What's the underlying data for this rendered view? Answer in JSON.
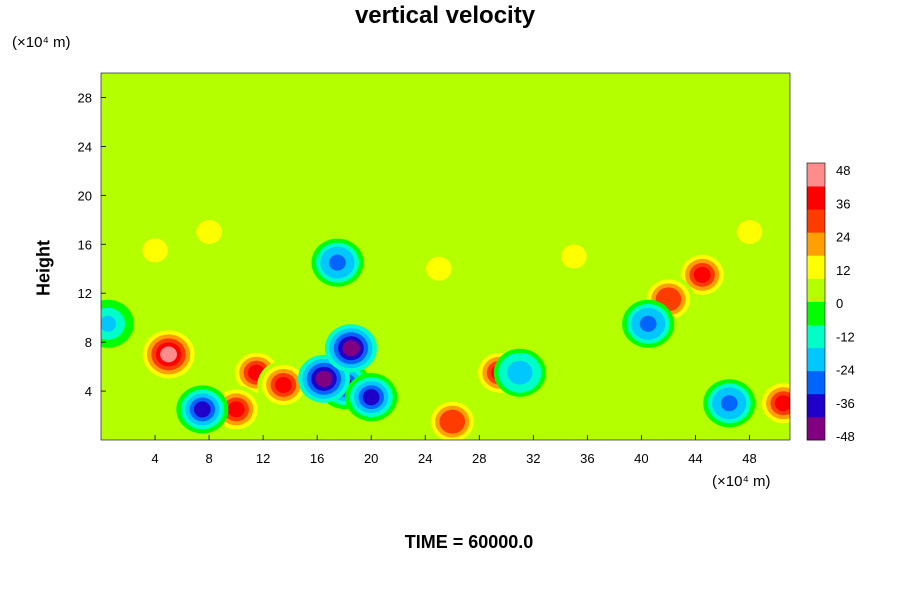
{
  "chart_data": {
    "type": "heatmap",
    "title": "vertical velocity",
    "ylabel": "Height",
    "x_unit_label": "(×10⁴ m)",
    "y_unit_label": "(×10⁴ m)",
    "time_label": "TIME = 60000.0",
    "xlim": [
      0,
      51
    ],
    "ylim": [
      0,
      30
    ],
    "x_ticks": [
      4,
      8,
      12,
      16,
      20,
      24,
      28,
      32,
      36,
      40,
      44,
      48
    ],
    "y_ticks": [
      4,
      8,
      12,
      16,
      20,
      24,
      28
    ],
    "colorbar": {
      "min": -48,
      "max": 48,
      "ticks": [
        48,
        36,
        24,
        12,
        0,
        -12,
        -24,
        -36,
        -48
      ],
      "colors": [
        "#800080",
        "#1e00c8",
        "#0064ff",
        "#00c8ff",
        "#00ffc8",
        "#00ff00",
        "#b4ff00",
        "#ffff00",
        "#ffa000",
        "#ff3c00",
        "#ff0000",
        "#ff8c8c"
      ]
    },
    "features": [
      {
        "x": 5,
        "y": 7,
        "value": 40
      },
      {
        "x": 11.5,
        "y": 5.5,
        "value": 33
      },
      {
        "x": 13.5,
        "y": 4.5,
        "value": 36
      },
      {
        "x": 10,
        "y": 2.5,
        "value": 38
      },
      {
        "x": 7.5,
        "y": 2.5,
        "value": -36
      },
      {
        "x": 18,
        "y": 4.5,
        "value": -40
      },
      {
        "x": 20,
        "y": 3.5,
        "value": -38
      },
      {
        "x": 16.5,
        "y": 5,
        "value": -44
      },
      {
        "x": 18.5,
        "y": 7.5,
        "value": -46
      },
      {
        "x": 17.5,
        "y": 14.5,
        "value": -30
      },
      {
        "x": 29.5,
        "y": 5.5,
        "value": 32
      },
      {
        "x": 26,
        "y": 1.5,
        "value": 30
      },
      {
        "x": 44.5,
        "y": 13.5,
        "value": 38
      },
      {
        "x": 42,
        "y": 11.5,
        "value": 30
      },
      {
        "x": 40.5,
        "y": 9.5,
        "value": -30
      },
      {
        "x": 46.5,
        "y": 3,
        "value": -30
      },
      {
        "x": 50.5,
        "y": 3,
        "value": 34
      },
      {
        "x": 31,
        "y": 5.5,
        "value": -24
      },
      {
        "x": 0.5,
        "y": 9.5,
        "value": -20
      },
      {
        "x": 4,
        "y": 15.5,
        "value": 12
      },
      {
        "x": 25,
        "y": 14,
        "value": 10
      },
      {
        "x": 35,
        "y": 15,
        "value": 10
      },
      {
        "x": 8,
        "y": 17,
        "value": 12
      },
      {
        "x": 48,
        "y": 17,
        "value": 10
      }
    ]
  }
}
